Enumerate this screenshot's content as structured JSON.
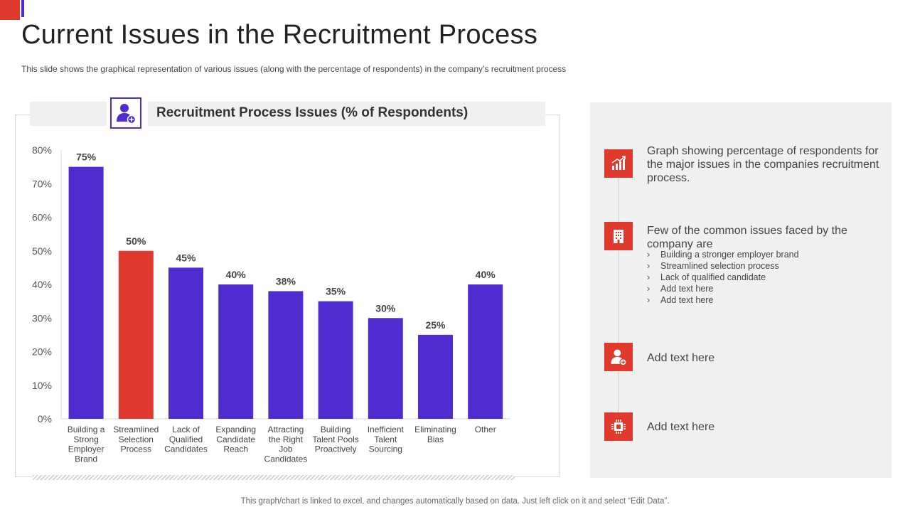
{
  "title": "Current Issues in the Recruitment Process",
  "subtitle": "This slide shows the graphical representation of various issues (along with the percentage of respondents) in the company’s recruitment process",
  "chart_header": {
    "title": "Recruitment Process Issues (% of Respondents)",
    "icon": "user-plus-icon"
  },
  "chart_data": {
    "type": "bar",
    "title": "Recruitment Process Issues (% of Respondents)",
    "xlabel": "",
    "ylabel": "",
    "ylim": [
      0,
      80
    ],
    "yticks": [
      0,
      10,
      20,
      30,
      40,
      50,
      60,
      70,
      80
    ],
    "ytick_labels": [
      "0%",
      "10%",
      "20%",
      "30%",
      "40%",
      "50%",
      "60%",
      "70%",
      "80%"
    ],
    "grid": false,
    "legend": "none",
    "categories": [
      "Building a Strong Employer Brand",
      "Streamlined Selection Process",
      "Lack of Qualified Candidates",
      "Expanding Candidate Reach",
      "Attracting the Right Job Candidates",
      "Building Talent Pools Proactively",
      "Inefficient Talent Sourcing",
      "Eliminating Bias",
      "Other"
    ],
    "category_lines": [
      [
        "Building a",
        "Strong",
        "Employer",
        "Brand"
      ],
      [
        "Streamlined",
        "Selection",
        "Process"
      ],
      [
        "Lack of",
        "Qualified",
        "Candidates"
      ],
      [
        "Expanding",
        "Candidate",
        "Reach"
      ],
      [
        "Attracting",
        "the Right",
        "Job",
        "Candidates"
      ],
      [
        "Building",
        "Talent Pools",
        "Proactively"
      ],
      [
        "Inefficient",
        "Talent",
        "Sourcing"
      ],
      [
        "Eliminating",
        "Bias"
      ],
      [
        "Other"
      ]
    ],
    "values": [
      75,
      50,
      45,
      40,
      38,
      35,
      30,
      25,
      40
    ],
    "data_labels": [
      "75%",
      "50%",
      "45%",
      "40%",
      "38%",
      "35%",
      "30%",
      "25%",
      "40%"
    ],
    "highlight_index": 1,
    "colors": {
      "bar": "#4f2bd0",
      "highlight": "#e03a2f"
    }
  },
  "side_panel": {
    "items": [
      {
        "icon": "growth-chart-icon",
        "text": "Graph showing percentage of respondents for the major issues in the companies recruitment process."
      },
      {
        "icon": "building-icon",
        "text": "Few of the common issues faced by the company are"
      },
      {
        "icon": "user-plus-icon",
        "text": "Add text here"
      },
      {
        "icon": "chip-icon",
        "text": "Add text here"
      }
    ],
    "bullets": [
      "Building a stronger employer brand",
      "Streamlined selection process",
      "Lack of qualified candidate",
      "Add text here",
      "Add text here"
    ]
  },
  "footer": "This graph/chart is linked to excel, and changes automatically based on data. Just left click on it and select “Edit Data”.",
  "colors": {
    "accent_red": "#e03a2f",
    "accent_purple": "#4f2bd0",
    "panel_gray": "#f0f0f0"
  }
}
